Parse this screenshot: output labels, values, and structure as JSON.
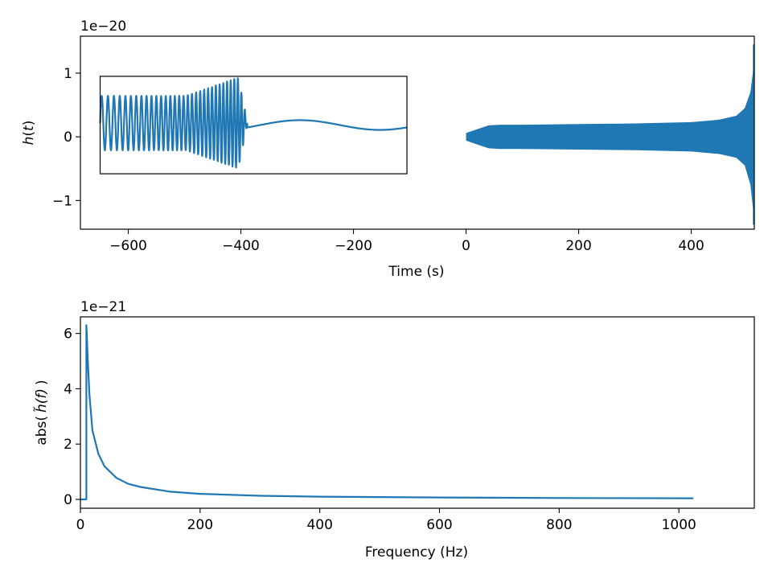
{
  "chart_data": [
    {
      "type": "line",
      "title": "",
      "xlabel": "Time (s)",
      "ylabel_math": {
        "base": "h",
        "arg": "t"
      },
      "offset_label": "1e−20",
      "xlim": [
        -685,
        512
      ],
      "ylim": [
        -1.45,
        1.58
      ],
      "xticks": [
        -600,
        -400,
        -200,
        0,
        200,
        400
      ],
      "xtick_labels": [
        "−600",
        "−400",
        "−200",
        "0",
        "200",
        "400"
      ],
      "yticks": [
        -1,
        0,
        1
      ],
      "ytick_labels": [
        "−1",
        "0",
        "1"
      ],
      "grid": false,
      "colors": {
        "series": "#1f77b4"
      },
      "series": [
        {
          "description_points": "envelope of strain vs time (x in s, y in units of 1e-20)",
          "x": [
            0,
            20,
            40,
            60,
            100,
            200,
            300,
            400,
            450,
            480,
            495,
            505,
            510,
            512
          ],
          "upper": [
            0.06,
            0.12,
            0.18,
            0.19,
            0.19,
            0.2,
            0.21,
            0.23,
            0.27,
            0.33,
            0.45,
            0.7,
            1.05,
            1.45
          ],
          "lower": [
            -0.06,
            -0.12,
            -0.18,
            -0.19,
            -0.19,
            -0.2,
            -0.21,
            -0.23,
            -0.27,
            -0.33,
            -0.45,
            -0.75,
            -1.15,
            -1.38
          ]
        }
      ],
      "inset": {
        "x_range": [
          -650,
          -105
        ],
        "y_range": [
          -0.58,
          0.95
        ],
        "description": "zoomed inset showing merger waveform"
      }
    },
    {
      "type": "line",
      "title": "",
      "xlabel": "Frequency (Hz)",
      "ylabel_parts": {
        "prefix": "abs(",
        "math": "h̃(f)",
        "suffix": ")"
      },
      "offset_label": "1e−21",
      "xlim": [
        0,
        1126
      ],
      "ylim": [
        -0.32,
        6.6
      ],
      "xticks": [
        0,
        200,
        400,
        600,
        800,
        1000
      ],
      "xtick_labels": [
        "0",
        "200",
        "400",
        "600",
        "800",
        "1000"
      ],
      "yticks": [
        0,
        2,
        4,
        6
      ],
      "ytick_labels": [
        "0",
        "2",
        "4",
        "6"
      ],
      "grid": false,
      "colors": {
        "series": "#1f77b4"
      },
      "series": [
        {
          "x": [
            0,
            10,
            10,
            11,
            12,
            15,
            20,
            30,
            40,
            60,
            80,
            100,
            150,
            200,
            300,
            400,
            600,
            800,
            1024
          ],
          "y": [
            0.0,
            0.0,
            6.3,
            5.8,
            5.2,
            3.8,
            2.5,
            1.65,
            1.2,
            0.78,
            0.56,
            0.45,
            0.28,
            0.2,
            0.13,
            0.1,
            0.07,
            0.05,
            0.04
          ]
        }
      ]
    }
  ]
}
